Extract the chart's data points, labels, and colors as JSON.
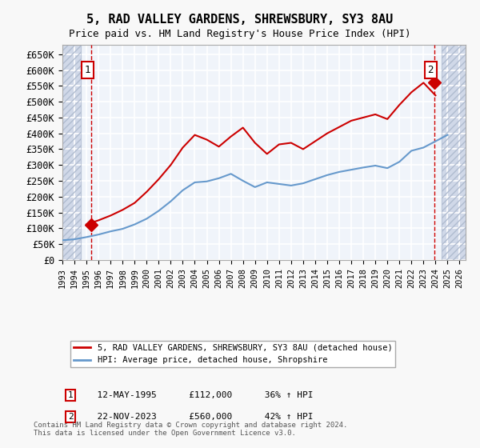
{
  "title": "5, RAD VALLEY GARDENS, SHREWSBURY, SY3 8AU",
  "subtitle": "Price paid vs. HM Land Registry's House Price Index (HPI)",
  "footer": "Contains HM Land Registry data © Crown copyright and database right 2024.\nThis data is licensed under the Open Government Licence v3.0.",
  "legend_line1": "5, RAD VALLEY GARDENS, SHREWSBURY, SY3 8AU (detached house)",
  "legend_line2": "HPI: Average price, detached house, Shropshire",
  "sale1_label": "1",
  "sale1_date": "12-MAY-1995",
  "sale1_price": "£112,000",
  "sale1_hpi": "36% ↑ HPI",
  "sale2_label": "2",
  "sale2_date": "22-NOV-2023",
  "sale2_price": "£560,000",
  "sale2_hpi": "42% ↑ HPI",
  "ylim": [
    0,
    680000
  ],
  "yticks": [
    0,
    50000,
    100000,
    150000,
    200000,
    250000,
    300000,
    350000,
    400000,
    450000,
    500000,
    550000,
    600000,
    650000
  ],
  "xlim_left": 1993.0,
  "xlim_right": 2026.5,
  "background_color": "#f0f4fa",
  "grid_color": "#ffffff",
  "hatch_color": "#d0d8e8",
  "red_line_color": "#cc0000",
  "blue_line_color": "#6699cc",
  "sale1_x": 1995.37,
  "sale1_y": 112000,
  "sale2_x": 2023.9,
  "sale2_y": 560000,
  "hpi_x": [
    1993,
    1994,
    1995,
    1996,
    1997,
    1998,
    1999,
    2000,
    2001,
    2002,
    2003,
    2004,
    2005,
    2006,
    2007,
    2008,
    2009,
    2010,
    2011,
    2012,
    2013,
    2014,
    2015,
    2016,
    2017,
    2018,
    2019,
    2020,
    2021,
    2022,
    2023,
    2024,
    2025
  ],
  "hpi_y": [
    62000,
    65000,
    72000,
    80000,
    90000,
    98000,
    112000,
    130000,
    155000,
    185000,
    220000,
    245000,
    248000,
    258000,
    272000,
    250000,
    230000,
    245000,
    240000,
    235000,
    242000,
    255000,
    268000,
    278000,
    285000,
    292000,
    298000,
    290000,
    310000,
    345000,
    355000,
    375000,
    395000
  ],
  "prop_x": [
    1995,
    1996,
    1997,
    1998,
    1999,
    2000,
    2001,
    2002,
    2003,
    2004,
    2005,
    2006,
    2007,
    2008,
    2009,
    2010,
    2011,
    2012,
    2013,
    2014,
    2015,
    2016,
    2017,
    2018,
    2019,
    2020,
    2021,
    2022,
    2023,
    2024
  ],
  "prop_y": [
    112000,
    125000,
    140000,
    158000,
    180000,
    215000,
    255000,
    300000,
    355000,
    395000,
    380000,
    358000,
    390000,
    418000,
    370000,
    335000,
    365000,
    370000,
    350000,
    375000,
    400000,
    420000,
    440000,
    450000,
    460000,
    445000,
    490000,
    530000,
    560000,
    520000
  ]
}
